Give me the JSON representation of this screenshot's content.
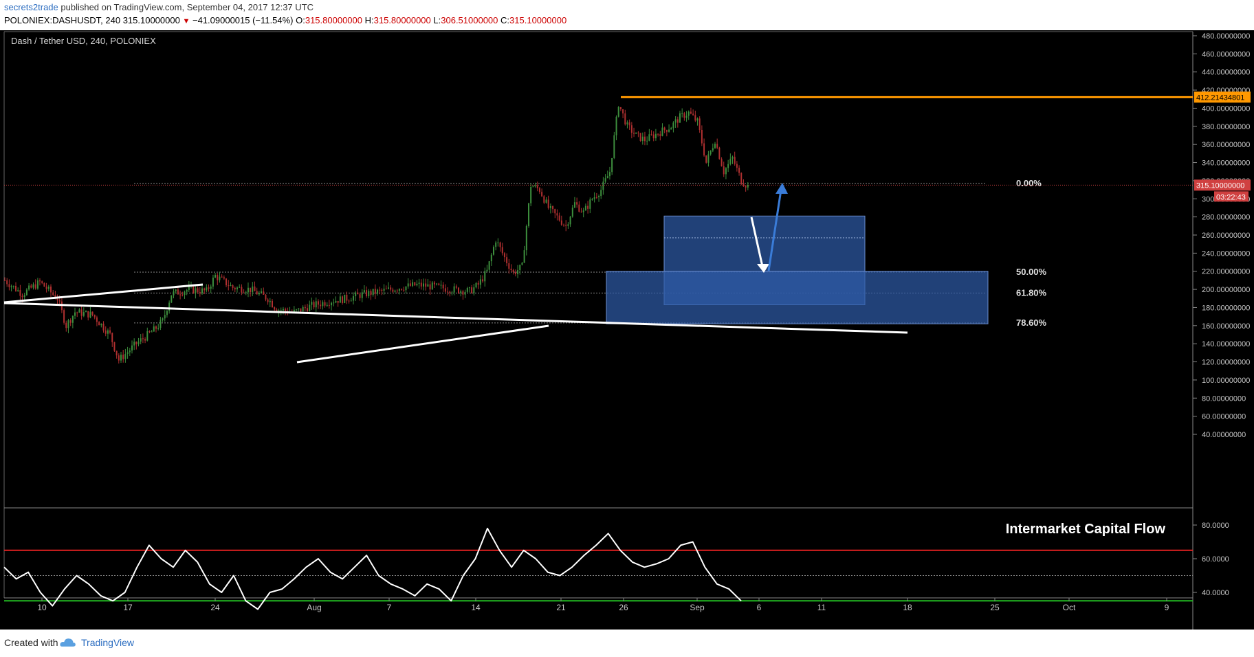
{
  "header": {
    "author": "secrets2trade",
    "published_text": " published on TradingView.com, September 04, 2017 12:37 UTC",
    "symbol": "POLONIEX:DASHUSDT, 240",
    "last": "315.10000000",
    "change": "−41.09000015 (−11.54%)",
    "open_label": "O:",
    "open": "315.80000000",
    "high_label": "H:",
    "high": "315.80000000",
    "low_label": "L:",
    "low": "306.51000000",
    "close_label": "C:",
    "close": "315.10000000"
  },
  "footer": {
    "created_with": "Created with",
    "brand": "TradingView"
  },
  "chart_data": [
    {
      "type": "candlestick",
      "title": "Dash / Tether USD, 240, POLONIEX",
      "y_ticks": [
        40,
        60,
        80,
        100,
        120,
        140,
        160,
        180,
        200,
        220,
        240,
        260,
        280,
        300,
        320,
        340,
        360,
        380,
        400,
        420,
        440,
        460,
        480
      ],
      "y_tick_labels": [
        "40.00000000",
        "60.00000000",
        "80.00000000",
        "100.00000000",
        "120.00000000",
        "140.00000000",
        "160.00000000",
        "180.00000000",
        "200.00000000",
        "220.00000000",
        "240.00000000",
        "260.00000000",
        "280.00000000",
        "300.00000000",
        "320.00000000",
        "340.00000000",
        "360.00000000",
        "380.00000000",
        "400.00000000",
        "420.00000000",
        "440.00000000",
        "460.00000000",
        "480.00000000"
      ],
      "x_tick_labels": [
        "10",
        "17",
        "24",
        "Aug",
        "7",
        "14",
        "21",
        "26",
        "Sep",
        "6",
        "11",
        "18",
        "25",
        "Oct",
        "9"
      ],
      "price_path": [
        [
          0,
          210
        ],
        [
          2,
          195
        ],
        [
          4,
          208
        ],
        [
          6,
          190
        ],
        [
          7,
          160
        ],
        [
          8,
          175
        ],
        [
          10,
          172
        ],
        [
          12,
          150
        ],
        [
          13,
          122
        ],
        [
          15,
          140
        ],
        [
          17,
          155
        ],
        [
          18,
          165
        ],
        [
          19,
          195
        ],
        [
          21,
          200
        ],
        [
          23,
          198
        ],
        [
          24,
          215
        ],
        [
          26,
          202
        ],
        [
          28,
          200
        ],
        [
          30,
          190
        ],
        [
          31,
          178
        ],
        [
          33,
          175
        ],
        [
          35,
          182
        ],
        [
          37,
          187
        ],
        [
          39,
          190
        ],
        [
          41,
          195
        ],
        [
          43,
          198
        ],
        [
          45,
          202
        ],
        [
          47,
          205
        ],
        [
          49,
          203
        ],
        [
          51,
          200
        ],
        [
          53,
          198
        ],
        [
          54,
          205
        ],
        [
          55,
          220
        ],
        [
          56,
          255
        ],
        [
          57,
          235
        ],
        [
          58,
          218
        ],
        [
          59,
          225
        ],
        [
          60,
          315
        ],
        [
          61,
          310
        ],
        [
          62,
          290
        ],
        [
          63,
          280
        ],
        [
          64,
          270
        ],
        [
          65,
          295
        ],
        [
          66,
          285
        ],
        [
          67,
          300
        ],
        [
          68,
          310
        ],
        [
          69,
          330
        ],
        [
          70,
          405
        ],
        [
          71,
          380
        ],
        [
          72,
          370
        ],
        [
          73,
          365
        ],
        [
          74,
          370
        ],
        [
          75,
          375
        ],
        [
          76,
          380
        ],
        [
          77,
          390
        ],
        [
          78,
          395
        ],
        [
          79,
          385
        ],
        [
          80,
          340
        ],
        [
          81,
          365
        ],
        [
          82,
          330
        ],
        [
          83,
          345
        ],
        [
          84,
          320
        ],
        [
          85,
          312
        ]
      ],
      "resistance_level": 412.21434801,
      "resistance_label": "412.21434801",
      "current_price_label": "315.10000000",
      "countdown": "03:22:43",
      "fibonacci": [
        {
          "level": "0.00%",
          "price": 317
        },
        {
          "level": "50.00%",
          "price": 219
        },
        {
          "level": "61.80%",
          "price": 196
        },
        {
          "level": "78.60%",
          "price": 163
        }
      ],
      "zones": [
        {
          "from": 183,
          "to": 281
        },
        {
          "from": 162,
          "to": 220
        }
      ]
    },
    {
      "type": "line",
      "title": "Intermarket Capital Flow",
      "y_ticks": [
        40,
        60,
        80
      ],
      "y_tick_labels": [
        "40.0000",
        "60.0000",
        "80.0000"
      ],
      "upper_level": 65,
      "mid_level": 50,
      "lower_level": 35,
      "values": [
        55,
        48,
        52,
        40,
        32,
        42,
        50,
        45,
        38,
        35,
        40,
        55,
        68,
        60,
        55,
        65,
        58,
        45,
        40,
        50,
        35,
        30,
        40,
        42,
        48,
        55,
        60,
        52,
        48,
        55,
        62,
        50,
        45,
        42,
        38,
        45,
        42,
        35,
        50,
        60,
        78,
        65,
        55,
        65,
        60,
        52,
        50,
        55,
        62,
        68,
        75,
        65,
        58,
        55,
        57,
        60,
        68,
        70,
        55,
        45,
        42,
        35
      ]
    }
  ],
  "colors": {
    "up_candle": "#3d8f3d",
    "down_candle": "#b03030",
    "resistance": "#ff9800",
    "zone": "#2e5aa6",
    "upper_band": "#e02020",
    "lower_band": "#22bb22",
    "blue_arrow": "#3a7cd8"
  }
}
